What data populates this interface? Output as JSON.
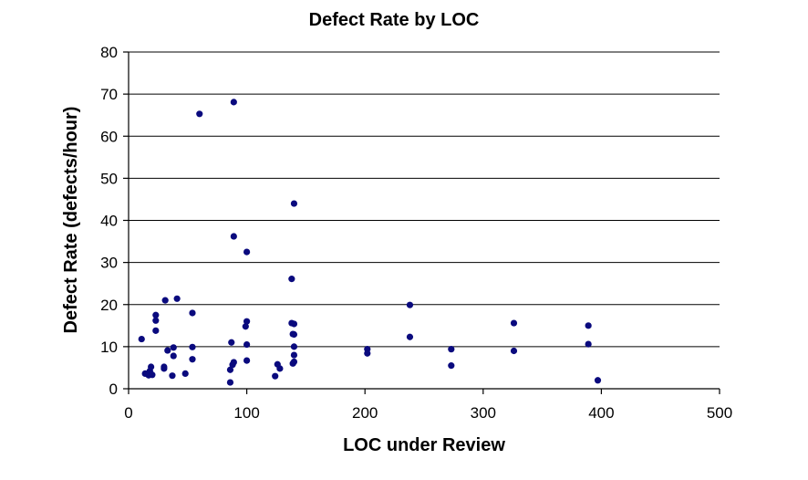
{
  "chart_data": {
    "type": "scatter",
    "title": "Defect Rate by LOC",
    "xlabel": "LOC under Review",
    "ylabel": "Defect Rate (defects/hour)",
    "xlim": [
      0,
      500
    ],
    "ylim": [
      0,
      80
    ],
    "xticks": [
      "0",
      "100",
      "200",
      "300",
      "400",
      "500"
    ],
    "yticks": [
      "0",
      "10",
      "20",
      "30",
      "40",
      "50",
      "60",
      "70",
      "80"
    ],
    "grid": "horizontal",
    "marker_color": "#0a0a7e",
    "points": [
      [
        11,
        11.8
      ],
      [
        14,
        3.6
      ],
      [
        17,
        3.2
      ],
      [
        18,
        4.2
      ],
      [
        19,
        5.2
      ],
      [
        20,
        3.3
      ],
      [
        23,
        17.5
      ],
      [
        23,
        16.2
      ],
      [
        23,
        13.8
      ],
      [
        30,
        5.2
      ],
      [
        30,
        4.8
      ],
      [
        31,
        21.0
      ],
      [
        33,
        9.1
      ],
      [
        37,
        3.1
      ],
      [
        38,
        9.8
      ],
      [
        38,
        7.8
      ],
      [
        41,
        21.4
      ],
      [
        48,
        3.6
      ],
      [
        54,
        18.0
      ],
      [
        54,
        9.9
      ],
      [
        54,
        7.0
      ],
      [
        60,
        65.3
      ],
      [
        86,
        1.5
      ],
      [
        86,
        4.5
      ],
      [
        87,
        11.0
      ],
      [
        88,
        5.7
      ],
      [
        89,
        68.1
      ],
      [
        89,
        36.2
      ],
      [
        89,
        6.3
      ],
      [
        99,
        14.8
      ],
      [
        100,
        16.0
      ],
      [
        100,
        32.5
      ],
      [
        100,
        10.5
      ],
      [
        100,
        6.7
      ],
      [
        124,
        3.0
      ],
      [
        126,
        5.8
      ],
      [
        128,
        4.8
      ],
      [
        138,
        15.6
      ],
      [
        138,
        26.1
      ],
      [
        139,
        13.0
      ],
      [
        139,
        6.0
      ],
      [
        140,
        15.4
      ],
      [
        140,
        44.0
      ],
      [
        140,
        12.9
      ],
      [
        140,
        10.0
      ],
      [
        140,
        8.0
      ],
      [
        140,
        6.4
      ],
      [
        202,
        9.4
      ],
      [
        202,
        8.4
      ],
      [
        238,
        19.9
      ],
      [
        238,
        12.3
      ],
      [
        273,
        9.4
      ],
      [
        273,
        5.5
      ],
      [
        326,
        15.6
      ],
      [
        326,
        9.0
      ],
      [
        389,
        15.0
      ],
      [
        389,
        10.6
      ],
      [
        397,
        2.0
      ]
    ]
  }
}
